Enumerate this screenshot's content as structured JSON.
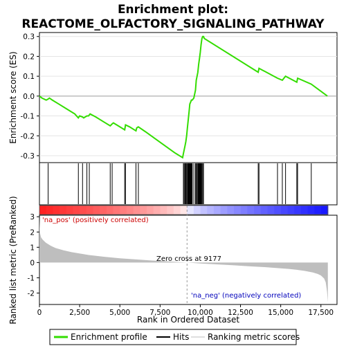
{
  "title_line1": "Enrichment plot:",
  "title_line2": "REACTOME_OLFACTORY_SIGNALING_PATHWAY",
  "colors": {
    "enrichment_line": "#33dd00",
    "hits": "#000000",
    "ranking_fill": "#bebebe",
    "pos_text": "#cc0000",
    "neg_text": "#0000bb",
    "zero_line": "#999999"
  },
  "chart_data": [
    {
      "type": "line",
      "name": "enrichment-profile",
      "ylabel": "Enrichment score (ES)",
      "xlim": [
        0,
        18500
      ],
      "ylim": [
        -0.335,
        0.32
      ],
      "yticks": [
        -0.3,
        -0.2,
        -0.1,
        0.0,
        0.1,
        0.2,
        0.3
      ],
      "ytick_labels": [
        "-0.3",
        "-0.2",
        "-0.1",
        "0.0",
        "0.1",
        "0.2",
        "0.3"
      ],
      "x": [
        0,
        150,
        420,
        540,
        620,
        800,
        1200,
        1700,
        2200,
        2420,
        2500,
        2680,
        2750,
        2950,
        3050,
        3150,
        3500,
        4000,
        4400,
        4520,
        4600,
        4900,
        5300,
        5350,
        5600,
        6000,
        6050,
        6150,
        6600,
        7200,
        7800,
        8400,
        8900,
        8950,
        9000,
        9050,
        9100,
        9150,
        9200,
        9250,
        9300,
        9350,
        9400,
        9450,
        9500,
        9600,
        9700,
        9750,
        9800,
        9850,
        9900,
        9950,
        10000,
        10050,
        10100,
        10150,
        10200,
        10250,
        13600,
        13650,
        14800,
        15100,
        15300,
        16000,
        16050,
        16900,
        17900
      ],
      "y": [
        0.0,
        -0.01,
        -0.02,
        -0.015,
        -0.01,
        -0.02,
        -0.04,
        -0.065,
        -0.09,
        -0.11,
        -0.1,
        -0.105,
        -0.11,
        -0.1,
        -0.1,
        -0.09,
        -0.105,
        -0.13,
        -0.15,
        -0.14,
        -0.135,
        -0.15,
        -0.17,
        -0.145,
        -0.155,
        -0.175,
        -0.16,
        -0.155,
        -0.18,
        -0.215,
        -0.25,
        -0.285,
        -0.31,
        -0.29,
        -0.27,
        -0.25,
        -0.23,
        -0.2,
        -0.16,
        -0.12,
        -0.08,
        -0.04,
        -0.03,
        -0.02,
        -0.02,
        -0.01,
        0.03,
        0.08,
        0.1,
        0.12,
        0.16,
        0.19,
        0.22,
        0.26,
        0.29,
        0.3,
        0.3,
        0.29,
        0.12,
        0.14,
        0.09,
        0.08,
        0.1,
        0.07,
        0.09,
        0.06,
        0.0
      ]
    },
    {
      "type": "hits",
      "name": "gene-hits",
      "positions": [
        540,
        2420,
        2680,
        2950,
        3100,
        4400,
        4520,
        5300,
        5350,
        6000,
        6150,
        8950,
        9000,
        9050,
        9100,
        9150,
        9200,
        9230,
        9260,
        9290,
        9320,
        9350,
        9380,
        9410,
        9440,
        9470,
        9500,
        9600,
        9700,
        9750,
        9800,
        9850,
        9880,
        9910,
        9940,
        9970,
        10000,
        10030,
        10060,
        10100,
        10150,
        10200,
        13600,
        13650,
        14800,
        15100,
        15300,
        16000,
        16050,
        16900
      ]
    },
    {
      "type": "area",
      "name": "ranked-list-metric",
      "xlabel": "Rank in Ordered Dataset",
      "ylabel": "Ranked list metric (PreRanked)",
      "xlim": [
        0,
        18500
      ],
      "ylim": [
        -2.75,
        3.1
      ],
      "yticks": [
        -2,
        -1,
        0,
        1,
        2,
        3
      ],
      "ytick_labels": [
        "-2",
        "-1",
        "0",
        "1",
        "2",
        "3"
      ],
      "xticks": [
        0,
        2500,
        5000,
        7500,
        10000,
        12500,
        15000,
        17500
      ],
      "xtick_labels": [
        "0",
        "2,500",
        "5,000",
        "7,500",
        "10,000",
        "12,500",
        "15,000",
        "17,500"
      ],
      "x": [
        0,
        30,
        100,
        200,
        400,
        700,
        1000,
        1500,
        2000,
        3000,
        4000,
        5000,
        6000,
        7000,
        8000,
        9177,
        10000,
        11000,
        12000,
        13000,
        14000,
        15000,
        15500,
        16000,
        16500,
        17000,
        17300,
        17500,
        17700,
        17800,
        17880,
        17930
      ],
      "y": [
        2.9,
        1.95,
        1.65,
        1.5,
        1.3,
        1.1,
        0.95,
        0.8,
        0.68,
        0.5,
        0.38,
        0.28,
        0.2,
        0.13,
        0.07,
        0.0,
        -0.06,
        -0.12,
        -0.18,
        -0.24,
        -0.3,
        -0.38,
        -0.42,
        -0.48,
        -0.55,
        -0.65,
        -0.75,
        -0.85,
        -1.05,
        -1.3,
        -1.9,
        -2.6
      ],
      "zero_cross_label": "Zero cross at 9177",
      "zero_cross": 9177,
      "pos_label": "'na_pos' (positively correlated)",
      "neg_label": "'na_neg' (negatively correlated)"
    }
  ],
  "legend": {
    "items": [
      {
        "label": "Enrichment profile"
      },
      {
        "label": "Hits"
      },
      {
        "label": "Ranking metric scores"
      }
    ]
  }
}
